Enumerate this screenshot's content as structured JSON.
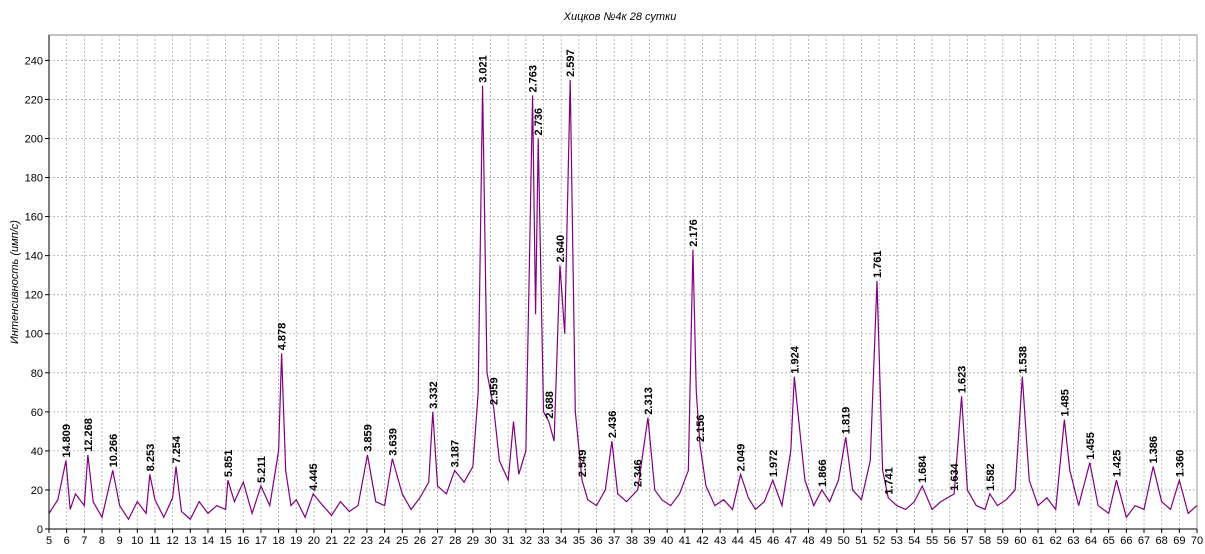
{
  "chart_data": {
    "type": "line",
    "title": "Хицков  №4к 28 сутки",
    "ylabel": "Интенсивность (имп/с)",
    "color": "#800080",
    "grid": true,
    "xlim": [
      5,
      70
    ],
    "ylim": [
      0,
      253
    ],
    "xticks": [
      5,
      6,
      7,
      8,
      9,
      10,
      11,
      12,
      13,
      14,
      15,
      16,
      17,
      18,
      19,
      20,
      21,
      22,
      23,
      24,
      25,
      26,
      27,
      28,
      29,
      30,
      31,
      32,
      33,
      34,
      35,
      36,
      37,
      38,
      39,
      40,
      41,
      42,
      43,
      44,
      45,
      46,
      47,
      48,
      49,
      50,
      51,
      52,
      53,
      54,
      55,
      56,
      57,
      58,
      59,
      60,
      61,
      62,
      63,
      64,
      65,
      66,
      67,
      68,
      69,
      70
    ],
    "yticks": [
      0,
      20,
      40,
      60,
      80,
      100,
      120,
      140,
      160,
      180,
      200,
      220,
      240
    ],
    "x": [
      5,
      5.5,
      5.96,
      6.2,
      6.5,
      7,
      7.2,
      7.5,
      8,
      8.61,
      9,
      9.5,
      10,
      10.5,
      10.71,
      11,
      11.5,
      12,
      12.19,
      12.5,
      13,
      13.5,
      14,
      14.5,
      15,
      15.13,
      15.5,
      16,
      16.5,
      17,
      17.5,
      18,
      18.17,
      18.4,
      18.7,
      19,
      19.5,
      19.96,
      20.5,
      21,
      21.5,
      22,
      22.5,
      23.03,
      23.5,
      24,
      24.44,
      25,
      25.5,
      26,
      26.5,
      26.73,
      27,
      27.5,
      27.97,
      28.5,
      29,
      29.3,
      29.55,
      29.8,
      30.18,
      30.5,
      31,
      31.3,
      31.6,
      32,
      32.38,
      32.55,
      32.7,
      33,
      33.3,
      33.6,
      33.93,
      34.2,
      34.51,
      34.8,
      35.18,
      35.5,
      36,
      36.5,
      36.87,
      37.2,
      37.7,
      38.33,
      38.91,
      39.3,
      39.7,
      40.2,
      40.7,
      41.2,
      41.46,
      41.65,
      41.86,
      42.2,
      42.7,
      43.2,
      43.7,
      44.16,
      44.6,
      45,
      45.5,
      45.98,
      46.5,
      47,
      47.2,
      47.4,
      47.8,
      48.3,
      48.76,
      49.2,
      49.7,
      50.11,
      50.5,
      51,
      51.5,
      51.88,
      52.2,
      52.52,
      53,
      53.5,
      54,
      54.44,
      55,
      55.5,
      56.25,
      56.67,
      57,
      57.5,
      58,
      58.27,
      58.7,
      59.2,
      59.7,
      60.11,
      60.5,
      61,
      61.5,
      62,
      62.49,
      62.8,
      63.3,
      63.93,
      64.4,
      65,
      65.44,
      66,
      66.5,
      67,
      67.52,
      68,
      68.5,
      69,
      69.5,
      70
    ],
    "values": [
      8,
      15,
      35,
      10,
      18,
      12,
      38,
      14,
      6,
      30,
      12,
      5,
      14,
      8,
      28,
      15,
      6,
      16,
      32,
      9,
      5,
      14,
      8,
      12,
      10,
      25,
      14,
      24,
      8,
      22,
      12,
      40,
      90,
      30,
      12,
      15,
      6,
      18,
      12,
      7,
      14,
      9,
      12,
      38,
      14,
      12,
      36,
      18,
      10,
      16,
      24,
      60,
      22,
      18,
      30,
      24,
      32,
      70,
      227,
      80,
      62,
      35,
      25,
      55,
      28,
      40,
      222,
      110,
      200,
      60,
      55,
      45,
      135,
      100,
      230,
      60,
      25,
      15,
      12,
      20,
      45,
      18,
      14,
      20,
      57,
      20,
      15,
      12,
      18,
      30,
      143,
      70,
      43,
      22,
      12,
      15,
      10,
      28,
      16,
      10,
      14,
      25,
      12,
      40,
      78,
      60,
      25,
      12,
      20,
      14,
      25,
      47,
      20,
      15,
      35,
      127,
      30,
      16,
      12,
      10,
      14,
      22,
      10,
      14,
      18,
      68,
      20,
      12,
      10,
      18,
      12,
      15,
      20,
      78,
      25,
      12,
      16,
      10,
      56,
      30,
      12,
      34,
      12,
      8,
      25,
      6,
      12,
      10,
      32,
      14,
      10,
      25,
      8,
      12
    ],
    "annotations": [
      {
        "text": "14.809",
        "x": 5.96,
        "y": 35
      },
      {
        "text": "12.268",
        "x": 7.2,
        "y": 38
      },
      {
        "text": "10.266",
        "x": 8.61,
        "y": 30
      },
      {
        "text": "8.253",
        "x": 10.71,
        "y": 28
      },
      {
        "text": "7.254",
        "x": 12.19,
        "y": 32
      },
      {
        "text": "5.851",
        "x": 15.13,
        "y": 25
      },
      {
        "text": "5.211",
        "x": 17.0,
        "y": 22
      },
      {
        "text": "4.878",
        "x": 18.17,
        "y": 90
      },
      {
        "text": "4.445",
        "x": 19.96,
        "y": 18
      },
      {
        "text": "3.859",
        "x": 23.03,
        "y": 38
      },
      {
        "text": "3.639",
        "x": 24.44,
        "y": 36
      },
      {
        "text": "3.332",
        "x": 26.73,
        "y": 60
      },
      {
        "text": "3.187",
        "x": 27.97,
        "y": 30
      },
      {
        "text": "3.021",
        "x": 29.55,
        "y": 227
      },
      {
        "text": "2.959",
        "x": 30.18,
        "y": 62
      },
      {
        "text": "2.763",
        "x": 32.38,
        "y": 222
      },
      {
        "text": "2.736",
        "x": 32.7,
        "y": 200
      },
      {
        "text": "2.688",
        "x": 33.3,
        "y": 55
      },
      {
        "text": "2.640",
        "x": 33.93,
        "y": 135
      },
      {
        "text": "2.597",
        "x": 34.51,
        "y": 230
      },
      {
        "text": "2.549",
        "x": 35.18,
        "y": 25
      },
      {
        "text": "2.436",
        "x": 36.87,
        "y": 45
      },
      {
        "text": "2.346",
        "x": 38.33,
        "y": 20
      },
      {
        "text": "2.313",
        "x": 38.91,
        "y": 57
      },
      {
        "text": "2.176",
        "x": 41.46,
        "y": 143
      },
      {
        "text": "2.156",
        "x": 41.86,
        "y": 43
      },
      {
        "text": "2.049",
        "x": 44.16,
        "y": 28
      },
      {
        "text": "1.972",
        "x": 45.98,
        "y": 25
      },
      {
        "text": "1.924",
        "x": 47.2,
        "y": 78
      },
      {
        "text": "1.866",
        "x": 48.76,
        "y": 20
      },
      {
        "text": "1.819",
        "x": 50.11,
        "y": 47
      },
      {
        "text": "1.761",
        "x": 51.88,
        "y": 127
      },
      {
        "text": "1.741",
        "x": 52.52,
        "y": 16
      },
      {
        "text": "1.684",
        "x": 54.44,
        "y": 22
      },
      {
        "text": "1.634",
        "x": 56.25,
        "y": 18
      },
      {
        "text": "1.623",
        "x": 56.67,
        "y": 68
      },
      {
        "text": "1.582",
        "x": 58.27,
        "y": 18
      },
      {
        "text": "1.538",
        "x": 60.11,
        "y": 78
      },
      {
        "text": "1.485",
        "x": 62.49,
        "y": 56
      },
      {
        "text": "1.455",
        "x": 63.93,
        "y": 34
      },
      {
        "text": "1.425",
        "x": 65.44,
        "y": 25
      },
      {
        "text": "1.386",
        "x": 67.52,
        "y": 32
      },
      {
        "text": "1.360",
        "x": 69.0,
        "y": 25
      }
    ]
  }
}
